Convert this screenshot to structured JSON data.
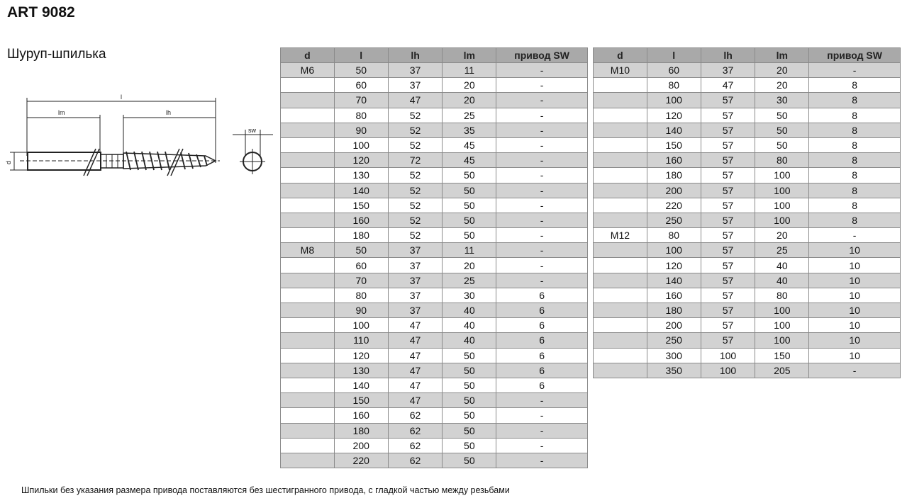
{
  "title": "ART 9082",
  "subtitle": "Шуруп-шпилька",
  "drawing": {
    "labels": {
      "l": "l",
      "lm": "lm",
      "lh": "lh",
      "d": "d",
      "sw": "sw"
    }
  },
  "columns": [
    "d",
    "l",
    "lh",
    "lm",
    "привод SW"
  ],
  "colors": {
    "header": "#a9a9a9",
    "stripe": "#d2d2d2",
    "border": "#8a8a8a"
  },
  "table_left": [
    [
      "M6",
      "50",
      "37",
      "11",
      "-"
    ],
    [
      "",
      "60",
      "37",
      "20",
      "-"
    ],
    [
      "",
      "70",
      "47",
      "20",
      "-"
    ],
    [
      "",
      "80",
      "52",
      "25",
      "-"
    ],
    [
      "",
      "90",
      "52",
      "35",
      "-"
    ],
    [
      "",
      "100",
      "52",
      "45",
      "-"
    ],
    [
      "",
      "120",
      "72",
      "45",
      "-"
    ],
    [
      "",
      "130",
      "52",
      "50",
      "-"
    ],
    [
      "",
      "140",
      "52",
      "50",
      "-"
    ],
    [
      "",
      "150",
      "52",
      "50",
      "-"
    ],
    [
      "",
      "160",
      "52",
      "50",
      "-"
    ],
    [
      "",
      "180",
      "52",
      "50",
      "-"
    ],
    [
      "M8",
      "50",
      "37",
      "11",
      "-"
    ],
    [
      "",
      "60",
      "37",
      "20",
      "-"
    ],
    [
      "",
      "70",
      "37",
      "25",
      "-"
    ],
    [
      "",
      "80",
      "37",
      "30",
      "6"
    ],
    [
      "",
      "90",
      "37",
      "40",
      "6"
    ],
    [
      "",
      "100",
      "47",
      "40",
      "6"
    ],
    [
      "",
      "110",
      "47",
      "40",
      "6"
    ],
    [
      "",
      "120",
      "47",
      "50",
      "6"
    ],
    [
      "",
      "130",
      "47",
      "50",
      "6"
    ],
    [
      "",
      "140",
      "47",
      "50",
      "6"
    ],
    [
      "",
      "150",
      "47",
      "50",
      "-"
    ],
    [
      "",
      "160",
      "62",
      "50",
      "-"
    ],
    [
      "",
      "180",
      "62",
      "50",
      "-"
    ],
    [
      "",
      "200",
      "62",
      "50",
      "-"
    ],
    [
      "",
      "220",
      "62",
      "50",
      "-"
    ]
  ],
  "table_right": [
    [
      "M10",
      "60",
      "37",
      "20",
      "-"
    ],
    [
      "",
      "80",
      "47",
      "20",
      "8"
    ],
    [
      "",
      "100",
      "57",
      "30",
      "8"
    ],
    [
      "",
      "120",
      "57",
      "50",
      "8"
    ],
    [
      "",
      "140",
      "57",
      "50",
      "8"
    ],
    [
      "",
      "150",
      "57",
      "50",
      "8"
    ],
    [
      "",
      "160",
      "57",
      "80",
      "8"
    ],
    [
      "",
      "180",
      "57",
      "100",
      "8"
    ],
    [
      "",
      "200",
      "57",
      "100",
      "8"
    ],
    [
      "",
      "220",
      "57",
      "100",
      "8"
    ],
    [
      "",
      "250",
      "57",
      "100",
      "8"
    ],
    [
      "M12",
      "80",
      "57",
      "20",
      "-"
    ],
    [
      "",
      "100",
      "57",
      "25",
      "10"
    ],
    [
      "",
      "120",
      "57",
      "40",
      "10"
    ],
    [
      "",
      "140",
      "57",
      "40",
      "10"
    ],
    [
      "",
      "160",
      "57",
      "80",
      "10"
    ],
    [
      "",
      "180",
      "57",
      "100",
      "10"
    ],
    [
      "",
      "200",
      "57",
      "100",
      "10"
    ],
    [
      "",
      "250",
      "57",
      "100",
      "10"
    ],
    [
      "",
      "300",
      "100",
      "150",
      "10"
    ],
    [
      "",
      "350",
      "100",
      "205",
      "-"
    ]
  ],
  "footnote": "Шпильки без указания размера привода поставляются без шестигранного привода, с гладкой частью между резьбами"
}
